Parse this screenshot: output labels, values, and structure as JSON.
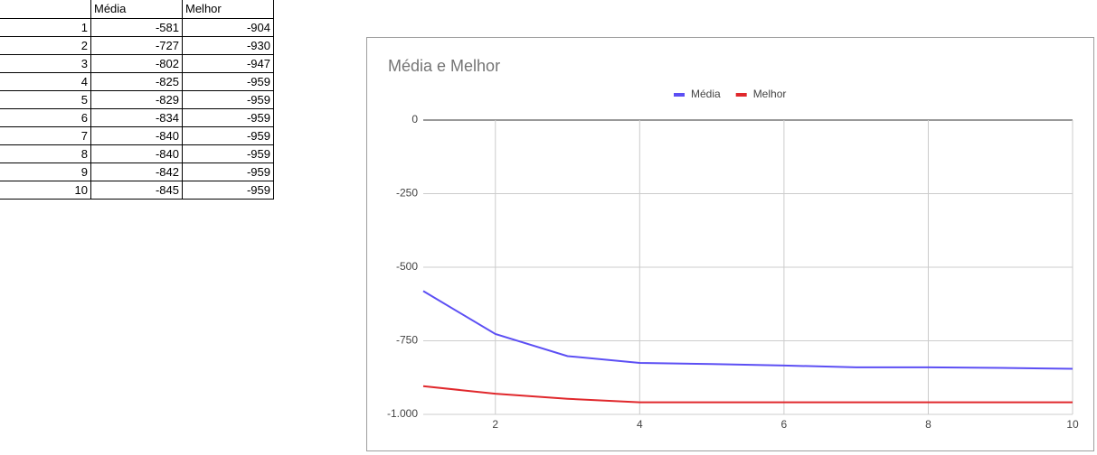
{
  "table": {
    "header": [
      "Média",
      "Melhor"
    ],
    "rows": [
      [
        1,
        -581,
        -904
      ],
      [
        2,
        -727,
        -930
      ],
      [
        3,
        -802,
        -947
      ],
      [
        4,
        -825,
        -959
      ],
      [
        5,
        -829,
        -959
      ],
      [
        6,
        -834,
        -959
      ],
      [
        7,
        -840,
        -959
      ],
      [
        8,
        -840,
        -959
      ],
      [
        9,
        -842,
        -959
      ],
      [
        10,
        -845,
        -959
      ]
    ]
  },
  "chart_data": {
    "type": "line",
    "title": "Média e Melhor",
    "x": [
      1,
      2,
      3,
      4,
      5,
      6,
      7,
      8,
      9,
      10
    ],
    "series": [
      {
        "name": "Média",
        "color": "#5c4ff4",
        "values": [
          -581,
          -727,
          -802,
          -825,
          -829,
          -834,
          -840,
          -840,
          -842,
          -845
        ]
      },
      {
        "name": "Melhor",
        "color": "#e0282c",
        "values": [
          -904,
          -930,
          -947,
          -959,
          -959,
          -959,
          -959,
          -959,
          -959,
          -959
        ]
      }
    ],
    "xlim": [
      1,
      10
    ],
    "xticks": [
      2,
      4,
      6,
      8,
      10
    ],
    "ylim": [
      -1000,
      0
    ],
    "yticks": [
      {
        "value": -1000,
        "label": "-1.000"
      },
      -750,
      -500,
      -250,
      0
    ],
    "grid": true,
    "legend": "top"
  }
}
